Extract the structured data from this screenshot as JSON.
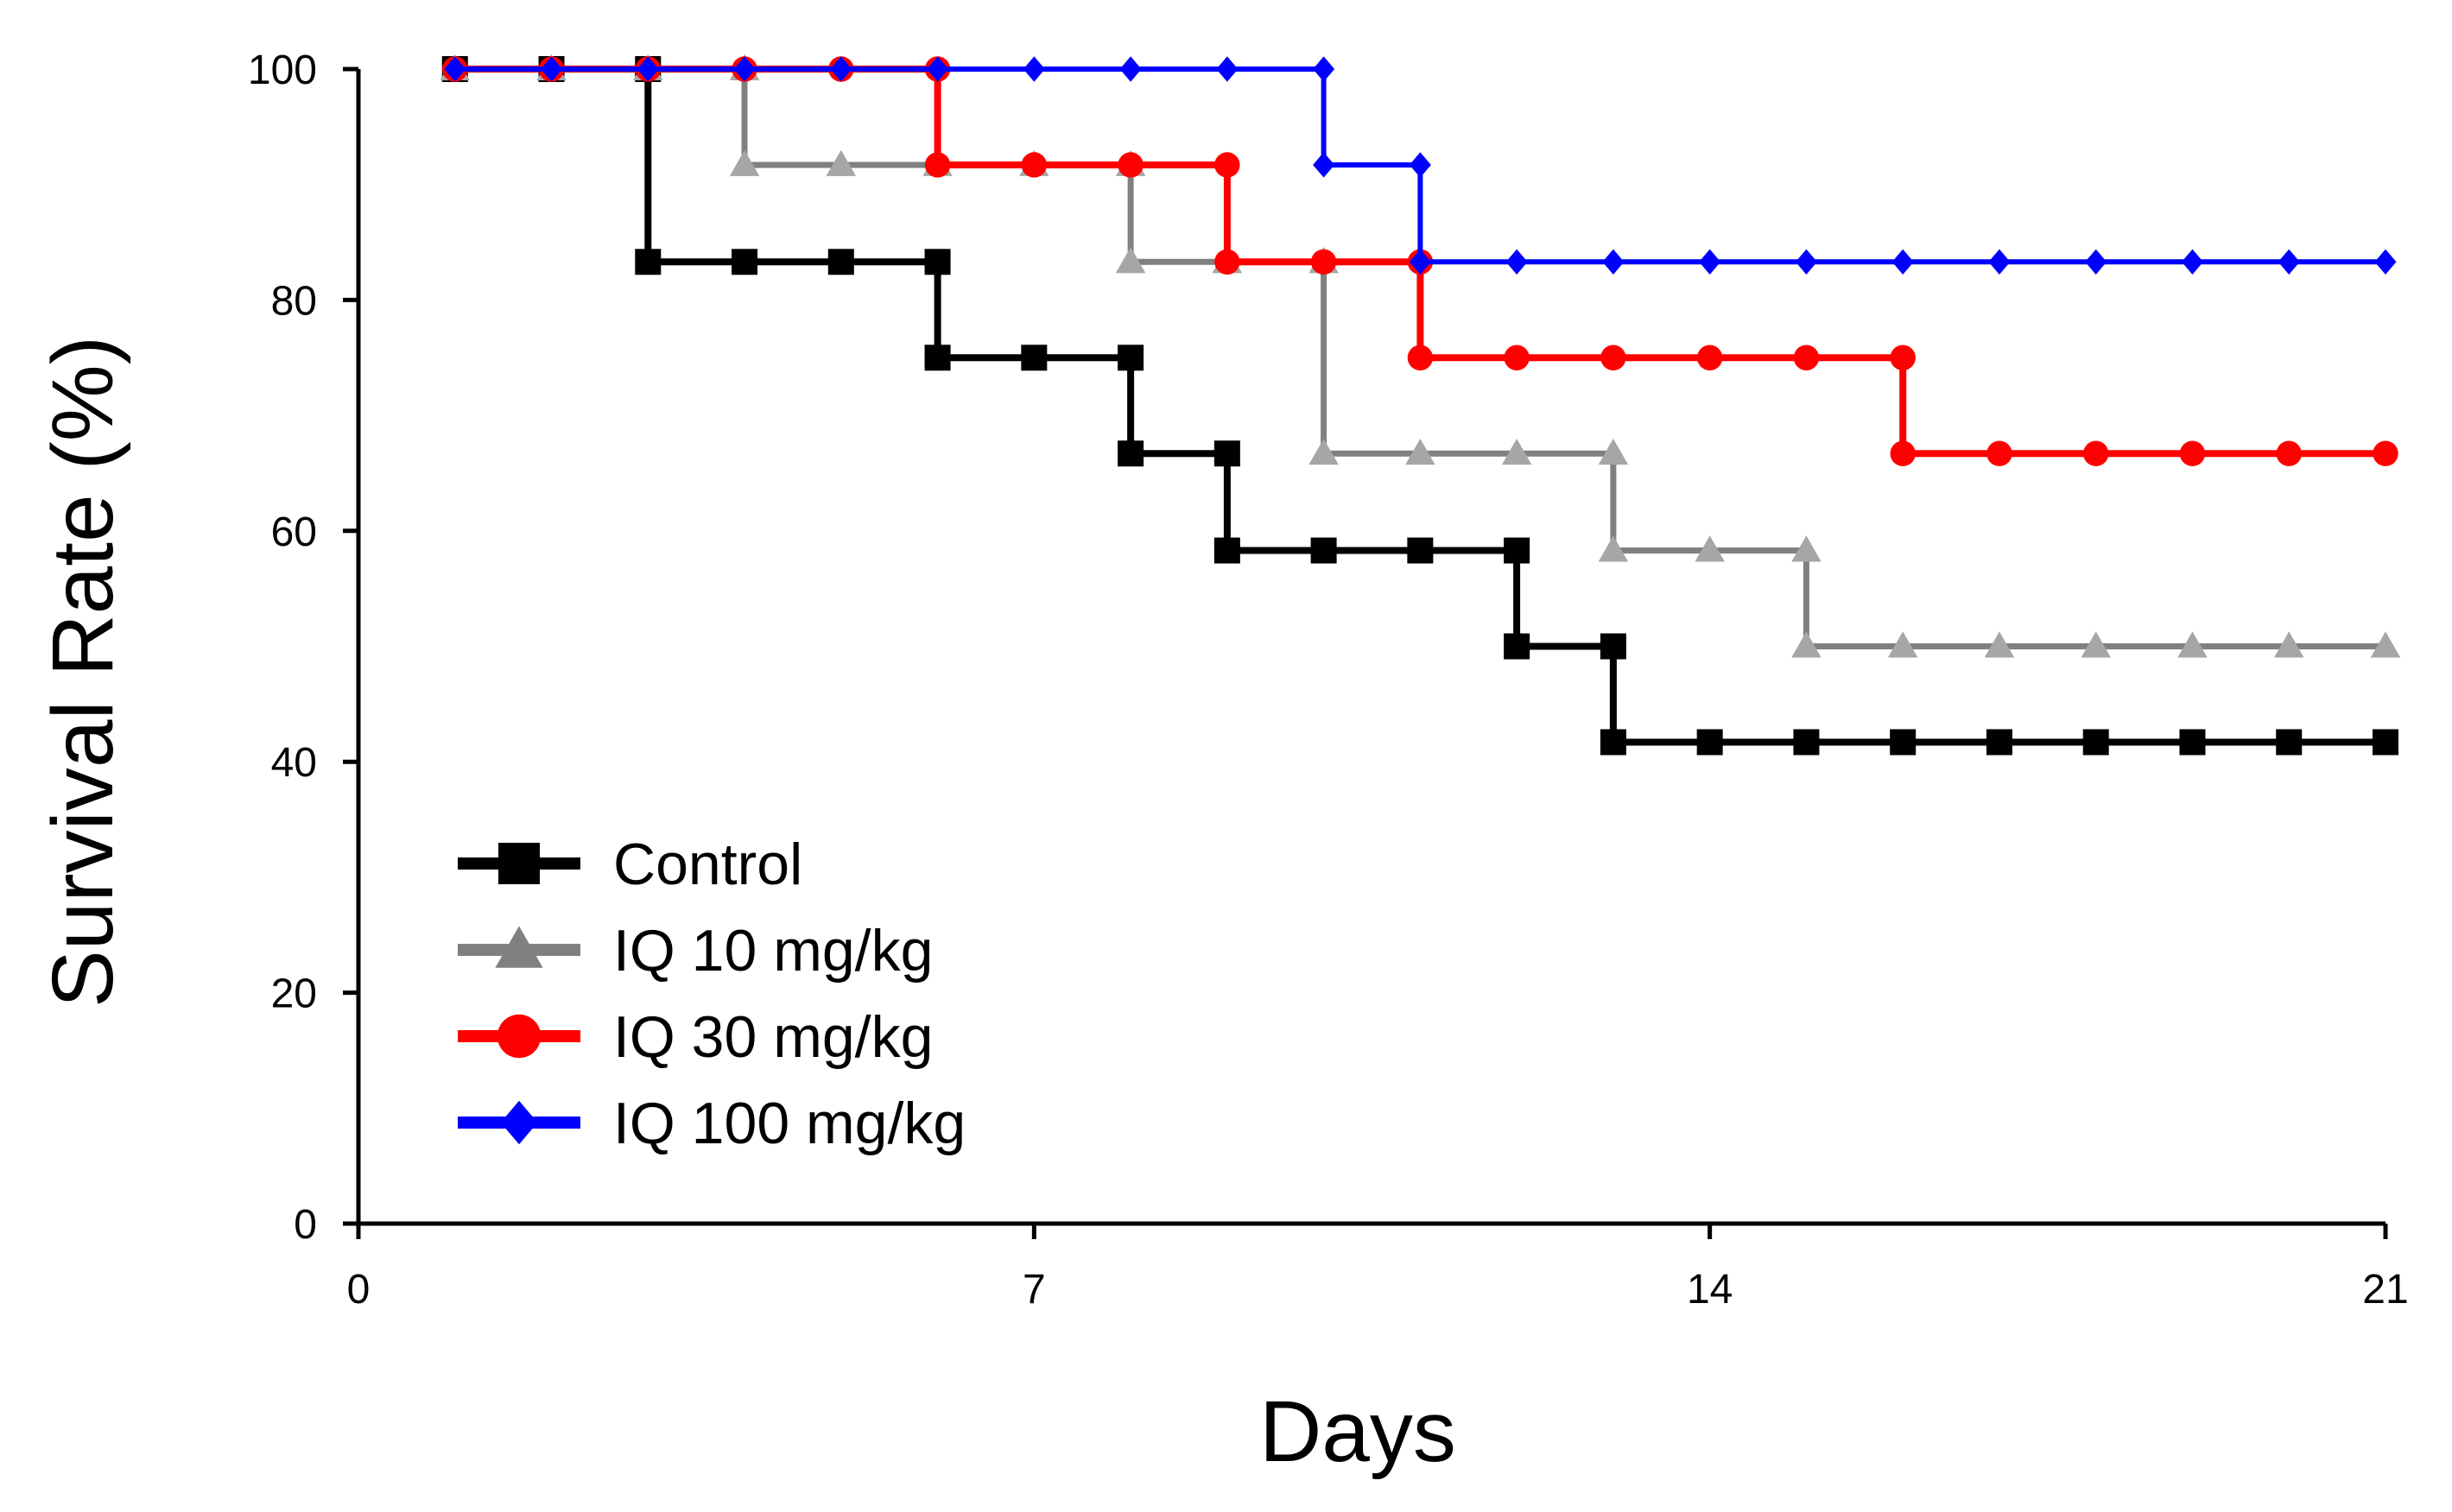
{
  "chart_data": {
    "type": "line",
    "step": true,
    "title": "",
    "xlabel": "Days",
    "ylabel": "Survival Rate (%)",
    "xlim": [
      0,
      21
    ],
    "ylim": [
      0,
      100
    ],
    "xticks": [
      0,
      7,
      14,
      21
    ],
    "yticks": [
      0,
      20,
      40,
      60,
      80,
      100
    ],
    "grid": false,
    "legend_position": "bottom-left",
    "series": [
      {
        "name": "Control",
        "color": "#000000",
        "marker": "square",
        "x": [
          1,
          2,
          3,
          3,
          4,
          5,
          6,
          6,
          7,
          8,
          8,
          9,
          9,
          10,
          11,
          12,
          12,
          13,
          13,
          14,
          15,
          16,
          17,
          18,
          19,
          20,
          21
        ],
        "y": [
          100,
          100,
          100,
          83.3,
          83.3,
          83.3,
          83.3,
          75,
          75,
          75,
          66.7,
          66.7,
          58.3,
          58.3,
          58.3,
          58.3,
          50,
          50,
          41.7,
          41.7,
          41.7,
          41.7,
          41.7,
          41.7,
          41.7,
          41.7,
          41.7
        ]
      },
      {
        "name": "IQ 10 mg/kg",
        "color": "#808080",
        "marker_color": "#a6a6a6",
        "marker": "triangle",
        "x": [
          1,
          2,
          3,
          4,
          4,
          5,
          6,
          7,
          8,
          8,
          9,
          10,
          10,
          11,
          12,
          13,
          13,
          14,
          15,
          15,
          16,
          17,
          18,
          19,
          20,
          21
        ],
        "y": [
          100,
          100,
          100,
          100,
          91.7,
          91.7,
          91.7,
          91.7,
          91.7,
          83.3,
          83.3,
          83.3,
          66.7,
          66.7,
          66.7,
          66.7,
          58.3,
          58.3,
          58.3,
          50,
          50,
          50,
          50,
          50,
          50,
          50
        ]
      },
      {
        "name": "IQ 30 mg/kg",
        "color": "#ff0000",
        "marker": "circle",
        "x": [
          1,
          2,
          3,
          4,
          5,
          6,
          6,
          7,
          8,
          9,
          9,
          10,
          11,
          11,
          12,
          13,
          14,
          15,
          16,
          16,
          17,
          18,
          19,
          20,
          21
        ],
        "y": [
          100,
          100,
          100,
          100,
          100,
          100,
          91.7,
          91.7,
          91.7,
          91.7,
          83.3,
          83.3,
          83.3,
          75,
          75,
          75,
          75,
          75,
          75,
          66.7,
          66.7,
          66.7,
          66.7,
          66.7,
          66.7
        ]
      },
      {
        "name": "IQ 100 mg/kg",
        "color": "#0000ff",
        "marker": "diamond",
        "x": [
          1,
          2,
          3,
          4,
          5,
          6,
          7,
          8,
          9,
          10,
          10,
          11,
          11,
          12,
          13,
          14,
          15,
          16,
          17,
          18,
          19,
          20,
          21
        ],
        "y": [
          100,
          100,
          100,
          100,
          100,
          100,
          100,
          100,
          100,
          100,
          91.7,
          91.7,
          83.3,
          83.3,
          83.3,
          83.3,
          83.3,
          83.3,
          83.3,
          83.3,
          83.3,
          83.3,
          83.3
        ]
      }
    ]
  }
}
